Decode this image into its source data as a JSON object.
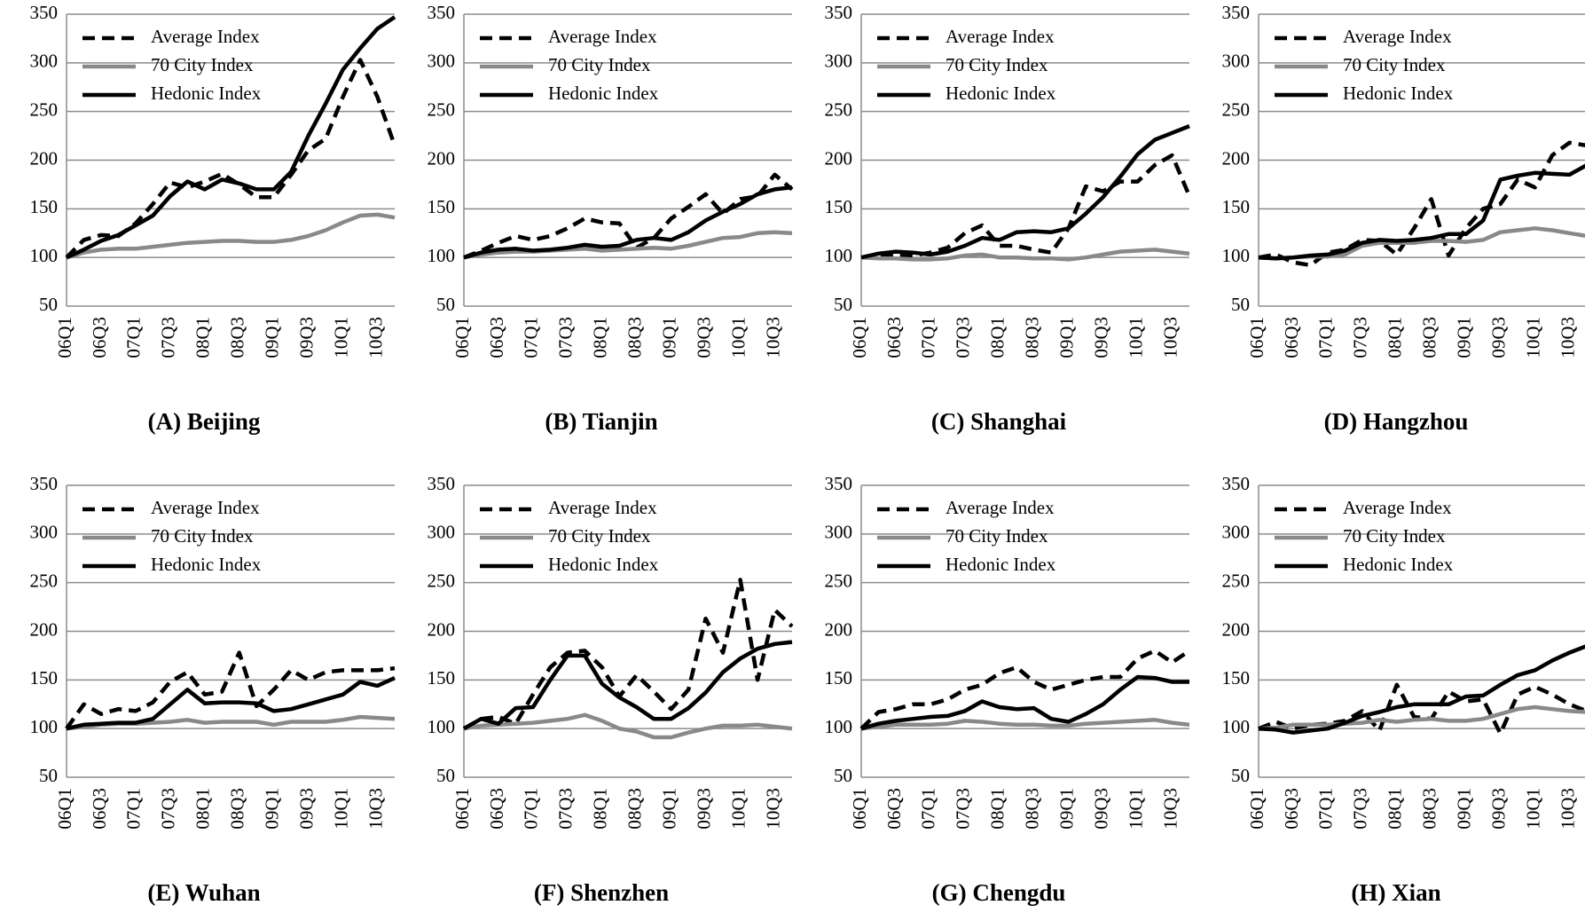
{
  "chart_data": [
    {
      "type": "line",
      "title": "(A) Beijing",
      "categories": [
        "06Q1",
        null,
        "06Q3",
        null,
        "07Q1",
        null,
        "07Q3",
        null,
        "08Q1",
        null,
        "08Q3",
        null,
        "09Q1",
        null,
        "09Q3",
        null,
        "10Q1",
        null,
        "10Q3",
        null
      ],
      "series": [
        {
          "name": "Average Index",
          "color": "#000000",
          "line_style": "dashed",
          "values": [
            100,
            118,
            123,
            122,
            135,
            155,
            177,
            172,
            178,
            186,
            175,
            162,
            162,
            185,
            210,
            222,
            265,
            303,
            265,
            215
          ]
        },
        {
          "name": "70 City Index",
          "color": "#898989",
          "line_style": "solid",
          "values": [
            100,
            105,
            108,
            109,
            109,
            111,
            113,
            115,
            116,
            117,
            117,
            116,
            116,
            118,
            122,
            128,
            136,
            143,
            144,
            141
          ]
        },
        {
          "name": "Hedonic Index",
          "color": "#000000",
          "line_style": "solid",
          "values": [
            100,
            108,
            117,
            123,
            133,
            143,
            163,
            178,
            170,
            180,
            176,
            170,
            170,
            188,
            225,
            258,
            293,
            315,
            335,
            347
          ]
        }
      ],
      "ylim": [
        50,
        350
      ],
      "yticks": [
        50,
        100,
        150,
        200,
        250,
        300,
        350
      ],
      "grid": true,
      "legend": "top-left"
    },
    {
      "type": "line",
      "title": "(B) Tianjin",
      "categories": [
        "06Q1",
        null,
        "06Q3",
        null,
        "07Q1",
        null,
        "07Q3",
        null,
        "08Q1",
        null,
        "08Q3",
        null,
        "09Q1",
        null,
        "09Q3",
        null,
        "10Q1",
        null,
        "10Q3",
        null
      ],
      "series": [
        {
          "name": "Average Index",
          "color": "#000000",
          "line_style": "dashed",
          "values": [
            100,
            107,
            115,
            122,
            118,
            122,
            130,
            140,
            136,
            135,
            110,
            120,
            140,
            152,
            165,
            145,
            160,
            163,
            185,
            170
          ]
        },
        {
          "name": "70 City Index",
          "color": "#898989",
          "line_style": "solid",
          "values": [
            100,
            103,
            105,
            106,
            106,
            107,
            108,
            109,
            107,
            108,
            109,
            110,
            109,
            112,
            116,
            120,
            121,
            125,
            126,
            125
          ]
        },
        {
          "name": "Hedonic Index",
          "color": "#000000",
          "line_style": "solid",
          "values": [
            100,
            105,
            108,
            109,
            107,
            108,
            110,
            113,
            111,
            112,
            118,
            120,
            118,
            126,
            138,
            147,
            155,
            165,
            170,
            172
          ]
        }
      ],
      "ylim": [
        50,
        350
      ],
      "yticks": [
        50,
        100,
        150,
        200,
        250,
        300,
        350
      ],
      "grid": true,
      "legend": "top-left"
    },
    {
      "type": "line",
      "title": "(C) Shanghai",
      "categories": [
        "06Q1",
        null,
        "06Q3",
        null,
        "07Q1",
        null,
        "07Q3",
        null,
        "08Q1",
        null,
        "08Q3",
        null,
        "09Q1",
        null,
        "09Q3",
        null,
        "10Q1",
        null,
        "10Q3",
        null
      ],
      "series": [
        {
          "name": "Average Index",
          "color": "#000000",
          "line_style": "dashed",
          "values": [
            100,
            102,
            103,
            102,
            105,
            110,
            125,
            133,
            112,
            112,
            108,
            105,
            130,
            173,
            168,
            178,
            178,
            195,
            205,
            163
          ]
        },
        {
          "name": "70 City Index",
          "color": "#898989",
          "line_style": "solid",
          "values": [
            100,
            99,
            99,
            98,
            98,
            99,
            102,
            103,
            100,
            100,
            99,
            99,
            98,
            100,
            103,
            106,
            107,
            108,
            106,
            104
          ]
        },
        {
          "name": "Hedonic Index",
          "color": "#000000",
          "line_style": "solid",
          "values": [
            100,
            104,
            106,
            105,
            103,
            106,
            112,
            120,
            118,
            126,
            127,
            126,
            130,
            145,
            162,
            183,
            206,
            221,
            228,
            235
          ]
        }
      ],
      "ylim": [
        50,
        350
      ],
      "yticks": [
        50,
        100,
        150,
        200,
        250,
        300,
        350
      ],
      "grid": true,
      "legend": "top-left"
    },
    {
      "type": "line",
      "title": "(D) Hangzhou",
      "categories": [
        "06Q1",
        null,
        "06Q3",
        null,
        "07Q1",
        null,
        "07Q3",
        null,
        "08Q1",
        null,
        "08Q3",
        null,
        "09Q1",
        null,
        "09Q3",
        null,
        "10Q1",
        null,
        "10Q3",
        null
      ],
      "series": [
        {
          "name": "Average Index",
          "color": "#000000",
          "line_style": "dashed",
          "values": [
            100,
            103,
            95,
            92,
            105,
            108,
            118,
            117,
            103,
            130,
            160,
            102,
            130,
            150,
            155,
            180,
            172,
            205,
            218,
            215
          ]
        },
        {
          "name": "70 City Index",
          "color": "#898989",
          "line_style": "solid",
          "values": [
            100,
            99,
            100,
            101,
            101,
            103,
            112,
            115,
            115,
            115,
            117,
            117,
            116,
            118,
            126,
            128,
            130,
            128,
            125,
            122
          ]
        },
        {
          "name": "Hedonic Index",
          "color": "#000000",
          "line_style": "solid",
          "values": [
            100,
            99,
            100,
            102,
            103,
            107,
            115,
            118,
            117,
            118,
            120,
            124,
            124,
            138,
            180,
            184,
            187,
            186,
            185,
            195
          ]
        }
      ],
      "ylim": [
        50,
        350
      ],
      "yticks": [
        50,
        100,
        150,
        200,
        250,
        300,
        350
      ],
      "grid": true,
      "legend": "top-left"
    },
    {
      "type": "line",
      "title": "(E) Wuhan",
      "categories": [
        "06Q1",
        null,
        "06Q3",
        null,
        "07Q1",
        null,
        "07Q3",
        null,
        "08Q1",
        null,
        "08Q3",
        null,
        "09Q1",
        null,
        "09Q3",
        null,
        "10Q1",
        null,
        "10Q3",
        null
      ],
      "series": [
        {
          "name": "Average Index",
          "color": "#000000",
          "line_style": "dashed",
          "values": [
            100,
            125,
            115,
            120,
            118,
            127,
            148,
            158,
            135,
            138,
            178,
            123,
            140,
            160,
            150,
            158,
            160,
            160,
            160,
            162
          ]
        },
        {
          "name": "70 City Index",
          "color": "#898989",
          "line_style": "solid",
          "values": [
            100,
            102,
            104,
            105,
            105,
            106,
            107,
            109,
            106,
            107,
            107,
            107,
            104,
            107,
            107,
            107,
            109,
            112,
            111,
            110
          ]
        },
        {
          "name": "Hedonic Index",
          "color": "#000000",
          "line_style": "solid",
          "values": [
            100,
            104,
            105,
            106,
            106,
            110,
            125,
            140,
            126,
            127,
            127,
            126,
            118,
            120,
            125,
            130,
            135,
            148,
            144,
            152
          ]
        }
      ],
      "ylim": [
        50,
        350
      ],
      "yticks": [
        50,
        100,
        150,
        200,
        250,
        300,
        350
      ],
      "grid": true,
      "legend": "top-left"
    },
    {
      "type": "line",
      "title": "(F) Shenzhen",
      "categories": [
        "06Q1",
        null,
        "06Q3",
        null,
        "07Q1",
        null,
        "07Q3",
        null,
        "08Q1",
        null,
        "08Q3",
        null,
        "09Q1",
        null,
        "09Q3",
        null,
        "10Q1",
        null,
        "10Q3",
        null
      ],
      "series": [
        {
          "name": "Average Index",
          "color": "#000000",
          "line_style": "dashed",
          "values": [
            100,
            110,
            112,
            105,
            135,
            163,
            178,
            180,
            163,
            133,
            155,
            138,
            120,
            140,
            213,
            178,
            253,
            150,
            222,
            205
          ]
        },
        {
          "name": "70 City Index",
          "color": "#898989",
          "line_style": "solid",
          "values": [
            100,
            103,
            104,
            105,
            106,
            108,
            110,
            114,
            108,
            100,
            97,
            91,
            91,
            96,
            100,
            103,
            103,
            104,
            102,
            100
          ]
        },
        {
          "name": "Hedonic Index",
          "color": "#000000",
          "line_style": "solid",
          "values": [
            100,
            110,
            105,
            121,
            122,
            150,
            175,
            175,
            146,
            132,
            122,
            110,
            110,
            121,
            137,
            158,
            172,
            182,
            187,
            189
          ]
        }
      ],
      "ylim": [
        50,
        350
      ],
      "yticks": [
        50,
        100,
        150,
        200,
        250,
        300,
        350
      ],
      "grid": true,
      "legend": "top-left"
    },
    {
      "type": "line",
      "title": "(G) Chengdu",
      "categories": [
        "06Q1",
        null,
        "06Q3",
        null,
        "07Q1",
        null,
        "07Q3",
        null,
        "08Q1",
        null,
        "08Q3",
        null,
        "09Q1",
        null,
        "09Q3",
        null,
        "10Q1",
        null,
        "10Q3",
        null
      ],
      "series": [
        {
          "name": "Average Index",
          "color": "#000000",
          "line_style": "dashed",
          "values": [
            100,
            117,
            120,
            125,
            125,
            130,
            140,
            145,
            157,
            163,
            148,
            140,
            145,
            150,
            153,
            153,
            172,
            180,
            168,
            180
          ]
        },
        {
          "name": "70 City Index",
          "color": "#898989",
          "line_style": "solid",
          "values": [
            100,
            102,
            104,
            104,
            104,
            105,
            108,
            107,
            105,
            104,
            104,
            103,
            103,
            105,
            106,
            107,
            108,
            109,
            106,
            104
          ]
        },
        {
          "name": "Hedonic Index",
          "color": "#000000",
          "line_style": "solid",
          "values": [
            100,
            105,
            108,
            110,
            112,
            113,
            118,
            128,
            122,
            120,
            121,
            110,
            107,
            115,
            125,
            140,
            153,
            152,
            148,
            148
          ]
        }
      ],
      "ylim": [
        50,
        350
      ],
      "yticks": [
        50,
        100,
        150,
        200,
        250,
        300,
        350
      ],
      "grid": true,
      "legend": "top-left"
    },
    {
      "type": "line",
      "title": "(H) Xian",
      "categories": [
        "06Q1",
        null,
        "06Q3",
        null,
        "07Q1",
        null,
        "07Q3",
        null,
        "08Q1",
        null,
        "08Q3",
        null,
        "09Q1",
        null,
        "09Q3",
        null,
        "10Q1",
        null,
        "10Q3",
        null
      ],
      "series": [
        {
          "name": "Average Index",
          "color": "#000000",
          "line_style": "dashed",
          "values": [
            100,
            107,
            100,
            104,
            105,
            108,
            118,
            98,
            145,
            112,
            110,
            138,
            128,
            130,
            95,
            135,
            143,
            135,
            125,
            118
          ]
        },
        {
          "name": "70 City Index",
          "color": "#898989",
          "line_style": "solid",
          "values": [
            100,
            101,
            104,
            104,
            104,
            105,
            106,
            109,
            107,
            109,
            110,
            108,
            108,
            110,
            115,
            120,
            122,
            120,
            118,
            117
          ]
        },
        {
          "name": "Hedonic Index",
          "color": "#000000",
          "line_style": "solid",
          "values": [
            100,
            99,
            96,
            98,
            100,
            106,
            113,
            117,
            122,
            125,
            125,
            125,
            133,
            134,
            145,
            155,
            160,
            170,
            178,
            185
          ]
        }
      ],
      "ylim": [
        50,
        350
      ],
      "yticks": [
        50,
        100,
        150,
        200,
        250,
        300,
        350
      ],
      "grid": true,
      "legend": "top-left"
    }
  ]
}
